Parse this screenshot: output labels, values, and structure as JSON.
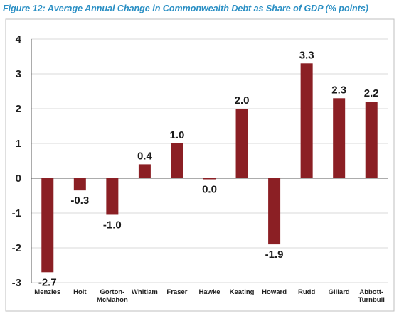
{
  "figure_title": "Figure 12: Average Annual Change in Commonwealth Debt as Share of GDP (% points)",
  "colors": {
    "title": "#2a8fc4",
    "bar": "#8b1f24",
    "grid": "#d9d9d9",
    "frame": "#bfbfbf"
  },
  "chart_data": {
    "type": "bar",
    "title": "Figure 12: Average Annual Change in Commonwealth Debt as Share of GDP (% points)",
    "xlabel": "",
    "ylabel": "",
    "ylim": [
      -3,
      4
    ],
    "yticks": [
      "4",
      "3",
      "2",
      "1",
      "0",
      "-1",
      "-2",
      "-3"
    ],
    "grid": true,
    "categories": [
      [
        "Menzies"
      ],
      [
        "Holt"
      ],
      [
        "Gorton-",
        "McMahon"
      ],
      [
        "Whitlam"
      ],
      [
        "Fraser"
      ],
      [
        "Hawke"
      ],
      [
        "Keating"
      ],
      [
        "Howard"
      ],
      [
        "Rudd"
      ],
      [
        "Gillard"
      ],
      [
        "Abbott-",
        "Turnbull"
      ]
    ],
    "values": [
      -2.7,
      -0.35,
      -1.05,
      0.4,
      1.0,
      -0.03,
      2.0,
      -1.9,
      3.3,
      2.3,
      2.2
    ],
    "data_labels": [
      "-2.7",
      "-0.3",
      "-1.0",
      "0.4",
      "1.0",
      "0.0",
      "2.0",
      "-1.9",
      "3.3",
      "2.3",
      "2.2"
    ]
  }
}
